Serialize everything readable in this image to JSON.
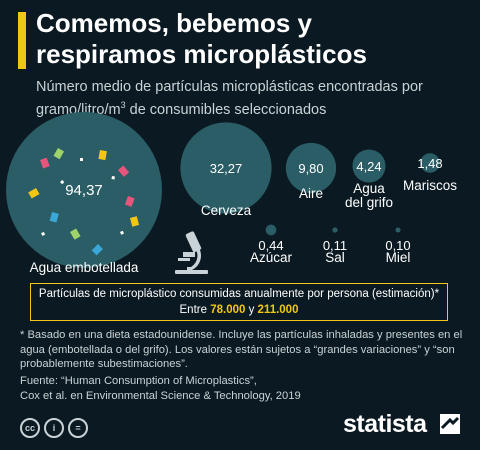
{
  "title_line1": "Comemos, bebemos y",
  "title_line2": "respiramos microplásticos",
  "subtitle_pre": "Número medio de partículas microplásticas encontradas por gramo/litro/m",
  "subtitle_sup": "3",
  "subtitle_post": " de consumibles seleccionados",
  "chart_data": {
    "type": "bubble",
    "title": "Comemos, bebemos y respiramos microplásticos",
    "subtitle": "Número medio de partículas microplásticas encontradas por gramo/litro/m3 de consumibles seleccionados",
    "categories": [
      "Agua embotellada",
      "Cerveza",
      "Aire",
      "Agua del grifo",
      "Mariscos",
      "Azúcar",
      "Sal",
      "Miel"
    ],
    "values": [
      94.37,
      32.27,
      9.8,
      4.24,
      1.48,
      0.44,
      0.11,
      0.1
    ],
    "value_labels": [
      "94,37",
      "32,27",
      "9,80",
      "4,24",
      "1,48",
      "0,44",
      "0,11",
      "0,10"
    ],
    "label_lines": [
      [
        "Agua embotellada"
      ],
      [
        "Cerveza"
      ],
      [
        "Aire"
      ],
      [
        "Agua",
        "del grifo"
      ],
      [
        "Mariscos"
      ],
      [
        "Azúcar"
      ],
      [
        "Sal"
      ],
      [
        "Miel"
      ]
    ]
  },
  "callout": {
    "line1": "Partículas de microplástico consumidas anualmente por persona (estimación)*",
    "pre": "Entre ",
    "low": "78.000",
    "mid": " y ",
    "high": "211.000"
  },
  "note": "* Basado en una dieta estadounidense. Incluye las partículas inhaladas y presentes en el agua (embotellada o del grifo). Los valores están sujetos a “grandes variaciones” y “son probablemente subestimaciones”.",
  "source_line1": "Fuente: “Human Consumption of Microplastics”,",
  "source_line2": "Cox et al. en Environmental Science & Technology, 2019",
  "license": [
    "cc",
    "i",
    "="
  ],
  "brand": "statista",
  "colors": {
    "background": "#0b1a22",
    "bubble": "#2a5d66",
    "accent": "#f2c714",
    "text_muted": "#c9d2d6"
  },
  "icons": [
    "microscope-icon",
    "creative-commons-icon",
    "attribution-icon",
    "no-derivatives-icon",
    "statista-logo-icon"
  ]
}
